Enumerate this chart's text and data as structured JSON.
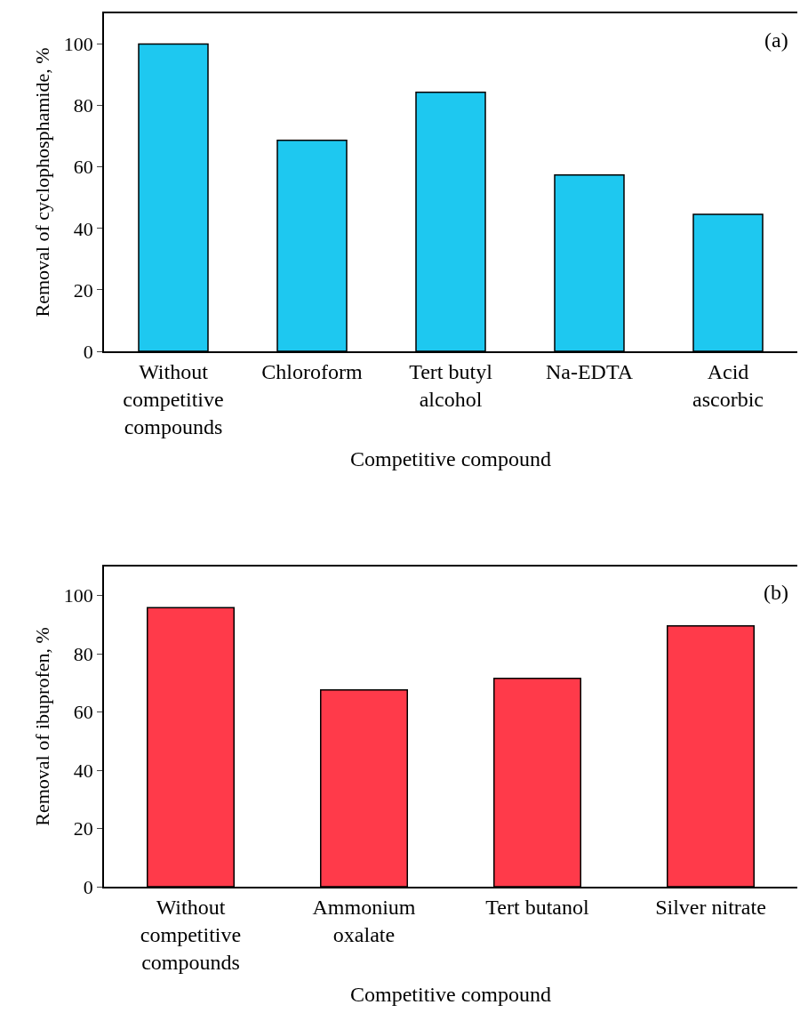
{
  "chart_data": [
    {
      "type": "bar",
      "xlabel": "Competitive compound",
      "ylabel": "Removal of cyclophosphamide, %",
      "categories": [
        "Without\ncompetitive\ncompounds",
        "Chloroform",
        "Tert butyl\nalcohol",
        "Na-EDTA",
        "Acid\nascorbic"
      ],
      "values": [
        100,
        68.7,
        84.3,
        57.4,
        44.6
      ],
      "color": "#1ec8f0",
      "ylim": [
        0,
        110
      ],
      "yticks": [
        0,
        20,
        40,
        60,
        80,
        100
      ],
      "annotations": [
        "(a)"
      ]
    },
    {
      "type": "bar",
      "xlabel": "Competitive compound",
      "ylabel": "Removal of ibuprofen, %",
      "categories": [
        "Without\ncompetitive\ncompounds",
        "Ammonium\noxalate",
        "Tert butanol",
        "Silver nitrate"
      ],
      "values": [
        95.9,
        67.6,
        71.6,
        89.6
      ],
      "color": "#ff3a4a",
      "ylim": [
        0,
        110
      ],
      "yticks": [
        0,
        20,
        40,
        60,
        80,
        100
      ],
      "annotations": [
        "(b)"
      ]
    }
  ]
}
